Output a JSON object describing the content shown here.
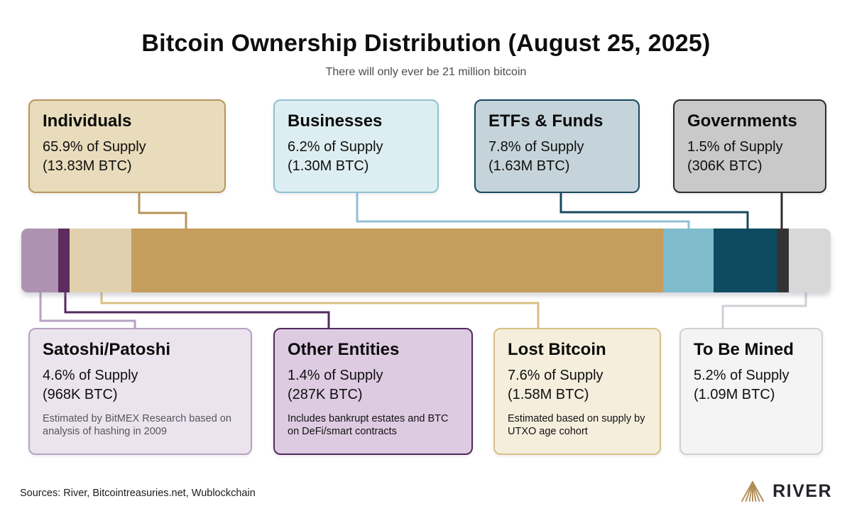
{
  "title": "Bitcoin Ownership Distribution (August 25, 2025)",
  "subtitle": "There will only ever be 21 million bitcoin",
  "chart_data": {
    "type": "bar",
    "orientation": "horizontal-stacked",
    "title": "Bitcoin Ownership Distribution (August 25, 2025)",
    "subtitle": "There will only ever be 21 million bitcoin",
    "total": "21 million BTC",
    "unit": "% of supply",
    "segments": [
      {
        "label": "Satoshi/Patoshi",
        "percent": 4.6,
        "btc": "968K BTC",
        "color": "#ad93b1"
      },
      {
        "label": "Other Entities",
        "percent": 1.4,
        "btc": "287K BTC",
        "color": "#5c2d5e"
      },
      {
        "label": "Lost Bitcoin",
        "percent": 7.6,
        "btc": "1.58M BTC",
        "color": "#e1d0ad"
      },
      {
        "label": "Individuals",
        "percent": 65.9,
        "btc": "13.83M BTC",
        "color": "#c59d5c"
      },
      {
        "label": "Businesses",
        "percent": 6.2,
        "btc": "1.30M BTC",
        "color": "#7fbbcb"
      },
      {
        "label": "ETFs & Funds",
        "percent": 7.8,
        "btc": "1.63M BTC",
        "color": "#0d4b60"
      },
      {
        "label": "Governments",
        "percent": 1.5,
        "btc": "306K BTC",
        "color": "#333333"
      },
      {
        "label": "To Be Mined",
        "percent": 5.2,
        "btc": "1.09M BTC",
        "color": "#d8d8d8"
      }
    ]
  },
  "cards": {
    "top": [
      {
        "title": "Individuals",
        "line1": "65.9% of Supply",
        "line2": "(13.83M BTC)",
        "fill": "#e9dcbc",
        "border": "#b6975a"
      },
      {
        "title": "Businesses",
        "line1": "6.2% of Supply",
        "line2": "(1.30M BTC)",
        "fill": "#ddeef2",
        "border": "#8ec2d2"
      },
      {
        "title": "ETFs & Funds",
        "line1": "7.8% of Supply",
        "line2": "(1.63M BTC)",
        "fill": "#c5d4da",
        "border": "#17495e"
      },
      {
        "title": "Governments",
        "line1": "1.5% of Supply",
        "line2": "(306K BTC)",
        "fill": "#c9c9c9",
        "border": "#2d2d2d"
      }
    ],
    "bottom": [
      {
        "title": "Satoshi/Patoshi",
        "line1": "4.6% of Supply",
        "line2": "(968K BTC)",
        "note": "Estimated by BitMEX Research based on analysis of hashing in 2009",
        "note_color": "#55555e",
        "fill": "#ebe4ee",
        "border": "#b7a1c2"
      },
      {
        "title": "Other Entities",
        "line1": "1.4% of Supply",
        "line2": "(287K BTC)",
        "note": "Includes bankrupt estates and BTC on DeFi/smart contracts",
        "note_color": "#121212",
        "fill": "#ddcbe2",
        "border": "#532a5e"
      },
      {
        "title": "Lost Bitcoin",
        "line1": "7.6% of Supply",
        "line2": "(1.58M BTC)",
        "note": "Estimated based on supply by UTXO age cohort",
        "note_color": "#121212",
        "fill": "#f5eedd",
        "border": "#d9c084"
      },
      {
        "title": "To Be Mined",
        "line1": "5.2% of Supply",
        "line2": "(1.09M BTC)",
        "fill": "#f4f4f5",
        "border": "#cdd1d5"
      }
    ]
  },
  "footer": {
    "sources": "Sources: River, Bitcointreasuries.net, Wublockchain",
    "brand": "RIVER",
    "logo_icon": "river-mountain-icon",
    "logo_color": "#b08d55"
  }
}
